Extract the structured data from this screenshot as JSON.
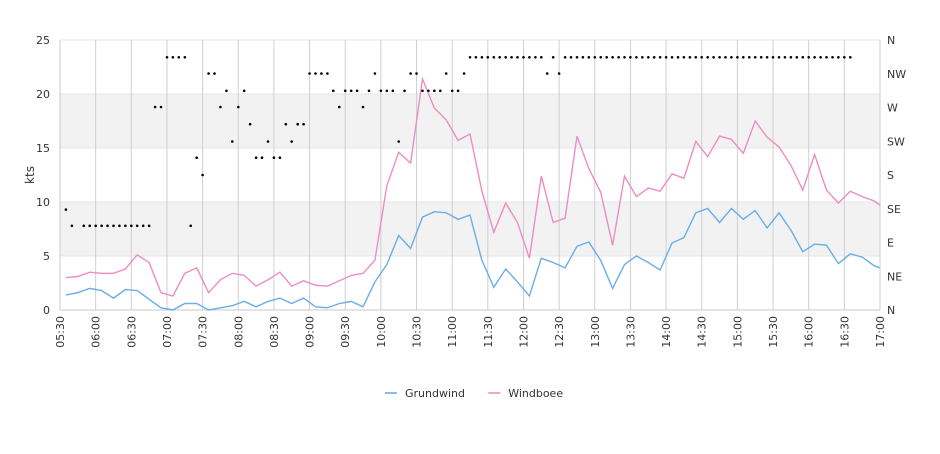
{
  "chart_data": {
    "type": "line",
    "ylabel": "kts",
    "ylim": [
      0,
      25
    ],
    "y_ticks": [
      "0",
      "5",
      "10",
      "15",
      "20",
      "25"
    ],
    "direction_ticks": [
      "N",
      "NE",
      "E",
      "SE",
      "S",
      "SW",
      "W",
      "NW",
      "N"
    ],
    "x_tick_labels": [
      "05:30",
      "06:00",
      "06:30",
      "07:00",
      "07:30",
      "08:00",
      "08:30",
      "09:00",
      "09:30",
      "10:00",
      "10:30",
      "11:00",
      "11:30",
      "12:00",
      "12:30",
      "13:00",
      "13:30",
      "14:00",
      "14:30",
      "15:00",
      "15:30",
      "16:00",
      "16:30",
      "17:00"
    ],
    "x_start": "05:30",
    "x_end": "17:00",
    "grid": true,
    "band_color": "#f2f2f2",
    "legend_position": "bottom",
    "times": [
      "05:35",
      "05:40",
      "05:45",
      "05:50",
      "05:55",
      "06:00",
      "06:05",
      "06:10",
      "06:15",
      "06:20",
      "06:25",
      "06:30",
      "06:35",
      "06:40",
      "06:45",
      "06:50",
      "06:55",
      "07:00",
      "07:05",
      "07:10",
      "07:15",
      "07:20",
      "07:25",
      "07:30",
      "07:35",
      "07:40",
      "07:45",
      "07:50",
      "07:55",
      "08:00",
      "08:05",
      "08:10",
      "08:15",
      "08:20",
      "08:25",
      "08:30",
      "08:35",
      "08:40",
      "08:45",
      "08:50",
      "08:55",
      "09:00",
      "09:05",
      "09:10",
      "09:15",
      "09:20",
      "09:25",
      "09:30",
      "09:35",
      "09:40",
      "09:45",
      "09:50",
      "09:55",
      "10:00",
      "10:05",
      "10:10",
      "10:15",
      "10:20",
      "10:25",
      "10:30",
      "10:35",
      "10:40",
      "10:45",
      "10:50",
      "10:55",
      "11:00",
      "11:05",
      "11:10",
      "11:15",
      "11:20",
      "11:25",
      "11:30",
      "11:35",
      "11:40",
      "11:45",
      "11:50",
      "11:55",
      "12:00",
      "12:05",
      "12:10",
      "12:15",
      "12:20",
      "12:25",
      "12:30",
      "12:35",
      "12:40",
      "12:45",
      "12:50",
      "12:55",
      "13:00",
      "13:05",
      "13:10",
      "13:15",
      "13:20",
      "13:25",
      "13:30",
      "13:35",
      "13:40",
      "13:45",
      "13:50",
      "13:55",
      "14:00",
      "14:05",
      "14:10",
      "14:15",
      "14:20",
      "14:25",
      "14:30",
      "14:35",
      "14:40",
      "14:45",
      "14:50",
      "14:55",
      "15:00",
      "15:05",
      "15:10",
      "15:15",
      "15:20",
      "15:25",
      "15:30",
      "15:35",
      "15:40",
      "15:45",
      "15:50",
      "15:55",
      "16:00",
      "16:05",
      "16:10",
      "16:15",
      "16:20",
      "16:25",
      "16:30",
      "16:35",
      "16:40",
      "16:45",
      "16:50",
      "16:55",
      "17:00"
    ],
    "series": [
      {
        "name": "Grundwind",
        "color": "#6aaee8",
        "times": [
          "05:35",
          "05:45",
          "05:55",
          "06:05",
          "06:15",
          "06:25",
          "06:35",
          "06:45",
          "06:55",
          "07:05",
          "07:15",
          "07:25",
          "07:35",
          "07:45",
          "07:55",
          "08:05",
          "08:15",
          "08:25",
          "08:35",
          "08:45",
          "08:55",
          "09:05",
          "09:15",
          "09:25",
          "09:35",
          "09:45",
          "09:55",
          "10:05",
          "10:15",
          "10:25",
          "10:35",
          "10:45",
          "10:55",
          "11:05",
          "11:15",
          "11:25",
          "11:35",
          "11:45",
          "11:55",
          "12:05",
          "12:15",
          "12:25",
          "12:35",
          "12:45",
          "12:55",
          "13:05",
          "13:15",
          "13:25",
          "13:35",
          "13:45",
          "13:55",
          "14:05",
          "14:15",
          "14:25",
          "14:35",
          "14:45",
          "14:55",
          "15:05",
          "15:15",
          "15:25",
          "15:35",
          "15:45",
          "15:55",
          "16:05",
          "16:15",
          "16:25",
          "16:35",
          "16:45",
          "16:55",
          "17:00"
        ],
        "values": [
          1.4,
          1.6,
          2.0,
          1.8,
          1.1,
          1.9,
          1.8,
          1.0,
          0.2,
          0.0,
          0.6,
          0.6,
          0.0,
          0.2,
          0.4,
          0.8,
          0.3,
          0.8,
          1.1,
          0.6,
          1.1,
          0.3,
          0.2,
          0.6,
          0.8,
          0.3,
          2.6,
          4.2,
          6.9,
          5.7,
          8.6,
          9.1,
          9.0,
          8.4,
          8.8,
          4.6,
          2.1,
          3.8,
          2.6,
          1.3,
          4.8,
          4.4,
          3.9,
          5.9,
          6.3,
          4.6,
          2.0,
          4.2,
          5.0,
          4.4,
          3.7,
          6.2,
          6.7,
          9.0,
          9.4,
          8.1,
          9.4,
          8.4,
          9.2,
          7.6,
          9.0,
          7.4,
          5.4,
          6.1,
          6.0,
          4.3,
          5.2,
          4.9,
          4.1,
          3.9
        ]
      },
      {
        "name": "Windboee",
        "color": "#ee8cc4",
        "times": [
          "05:35",
          "05:45",
          "05:55",
          "06:05",
          "06:15",
          "06:25",
          "06:35",
          "06:45",
          "06:55",
          "07:05",
          "07:15",
          "07:25",
          "07:35",
          "07:45",
          "07:55",
          "08:05",
          "08:15",
          "08:25",
          "08:35",
          "08:45",
          "08:55",
          "09:05",
          "09:15",
          "09:25",
          "09:35",
          "09:45",
          "09:55",
          "10:05",
          "10:15",
          "10:25",
          "10:35",
          "10:45",
          "10:55",
          "11:05",
          "11:15",
          "11:25",
          "11:35",
          "11:45",
          "11:55",
          "12:05",
          "12:15",
          "12:25",
          "12:35",
          "12:45",
          "12:55",
          "13:05",
          "13:15",
          "13:25",
          "13:35",
          "13:45",
          "13:55",
          "14:05",
          "14:15",
          "14:25",
          "14:35",
          "14:45",
          "14:55",
          "15:05",
          "15:15",
          "15:25",
          "15:35",
          "15:45",
          "15:55",
          "16:05",
          "16:15",
          "16:25",
          "16:35",
          "16:45",
          "16:55",
          "17:00"
        ],
        "values": [
          3.0,
          3.1,
          3.5,
          3.4,
          3.4,
          3.8,
          5.1,
          4.4,
          1.6,
          1.3,
          3.4,
          3.9,
          1.6,
          2.8,
          3.4,
          3.2,
          2.2,
          2.8,
          3.5,
          2.2,
          2.7,
          2.3,
          2.2,
          2.7,
          3.2,
          3.4,
          4.6,
          11.5,
          14.6,
          13.6,
          21.4,
          18.7,
          17.6,
          15.7,
          16.3,
          11.0,
          7.2,
          9.9,
          8.1,
          4.8,
          12.4,
          8.1,
          8.5,
          16.1,
          13.1,
          10.9,
          6.0,
          12.4,
          10.5,
          11.3,
          11.0,
          12.6,
          12.2,
          15.6,
          14.2,
          16.1,
          15.8,
          14.5,
          17.5,
          16.0,
          15.1,
          13.4,
          11.1,
          14.4,
          11.1,
          9.9,
          11.0,
          10.5,
          10.1,
          9.7
        ]
      },
      {
        "name": "direction",
        "color": "#000000",
        "times": [
          "05:35",
          "05:40",
          "05:50",
          "05:55",
          "06:00",
          "06:05",
          "06:10",
          "06:15",
          "06:20",
          "06:25",
          "06:30",
          "06:35",
          "06:40",
          "06:45",
          "06:50",
          "06:55",
          "07:00",
          "07:05",
          "07:10",
          "07:15",
          "07:20",
          "07:25",
          "07:30",
          "07:35",
          "07:40",
          "07:45",
          "07:50",
          "07:55",
          "08:00",
          "08:05",
          "08:10",
          "08:15",
          "08:20",
          "08:25",
          "08:30",
          "08:35",
          "08:40",
          "08:45",
          "08:50",
          "08:55",
          "09:00",
          "09:05",
          "09:10",
          "09:15",
          "09:20",
          "09:25",
          "09:30",
          "09:35",
          "09:40",
          "09:45",
          "09:50",
          "09:55",
          "10:00",
          "10:05",
          "10:10",
          "10:15",
          "10:20",
          "10:25",
          "10:30",
          "10:35",
          "10:40",
          "10:45",
          "10:50",
          "10:55",
          "11:00",
          "11:05",
          "11:10",
          "11:15",
          "11:20",
          "11:25",
          "11:30",
          "11:35",
          "11:40",
          "11:45",
          "11:50",
          "11:55",
          "12:00",
          "12:05",
          "12:10",
          "12:15",
          "12:20",
          "12:25",
          "12:30",
          "12:35",
          "12:40",
          "12:45",
          "12:50",
          "12:55",
          "13:00",
          "13:05",
          "13:10",
          "13:15",
          "13:20",
          "13:25",
          "13:30",
          "13:35",
          "13:40",
          "13:45",
          "13:50",
          "13:55",
          "14:00",
          "14:05",
          "14:10",
          "14:15",
          "14:20",
          "14:25",
          "14:30",
          "14:35",
          "14:40",
          "14:45",
          "14:50",
          "14:55",
          "15:00",
          "15:05",
          "15:10",
          "15:15",
          "15:20",
          "15:25",
          "15:30",
          "15:35",
          "15:40",
          "15:45",
          "15:50",
          "15:55",
          "16:00",
          "16:05",
          "16:10",
          "16:15",
          "16:20",
          "16:25",
          "16:30",
          "16:35",
          "16:40",
          "16:45",
          "16:50",
          "16:55",
          "17:00"
        ],
        "directions": [
          9.3,
          7.8,
          7.8,
          7.8,
          7.8,
          7.8,
          7.8,
          7.8,
          7.8,
          7.8,
          7.8,
          7.8,
          7.8,
          7.8,
          18.8,
          18.8,
          23.4,
          23.4,
          23.4,
          23.4,
          7.8,
          14.1,
          12.5,
          21.9,
          21.9,
          18.8,
          20.3,
          15.6,
          18.8,
          20.3,
          17.2,
          14.1,
          14.1,
          15.6,
          14.1,
          14.1,
          17.2,
          15.6,
          17.2,
          17.2,
          21.9,
          21.9,
          21.9,
          21.9,
          20.3,
          18.8,
          20.3,
          20.3,
          20.3,
          18.8,
          20.3,
          21.9,
          20.3,
          20.3,
          20.3,
          15.6,
          20.3,
          21.9,
          21.9,
          20.3,
          20.3,
          20.3,
          20.3,
          21.9,
          20.3,
          20.3,
          21.9,
          23.4,
          23.4,
          23.4,
          23.4,
          23.4,
          23.4,
          23.4,
          23.4,
          23.4,
          23.4,
          23.4,
          23.4,
          23.4,
          21.9,
          23.4,
          21.9,
          23.4,
          23.4,
          23.4,
          23.4,
          23.4,
          23.4,
          23.4,
          23.4,
          23.4,
          23.4,
          23.4,
          23.4,
          23.4,
          23.4,
          23.4,
          23.4,
          23.4,
          23.4,
          23.4,
          23.4,
          23.4,
          23.4,
          23.4,
          23.4,
          23.4,
          23.4,
          23.4,
          23.4,
          23.4,
          23.4,
          23.4,
          23.4,
          23.4,
          23.4,
          23.4,
          23.4,
          23.4,
          23.4,
          23.4,
          23.4,
          23.4,
          23.4,
          23.4,
          23.4,
          23.4,
          23.4,
          23.4,
          23.4,
          23.4
        ]
      }
    ]
  },
  "legend": {
    "items": [
      {
        "label": "Grundwind",
        "color": "#6aaee8"
      },
      {
        "label": "Windboee",
        "color": "#ee8cc4"
      }
    ]
  }
}
